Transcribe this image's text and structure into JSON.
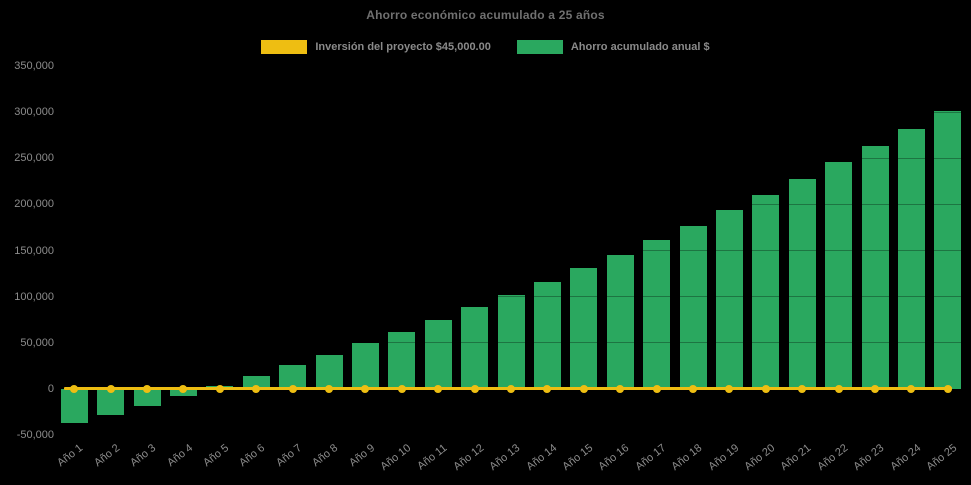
{
  "title": "Ahorro económico acumulado a 25 años",
  "colors": {
    "background": "#000000",
    "bar_green": "#2aa85f",
    "line_gold": "#eebe12",
    "title_text": "#707070",
    "axis_text": "#8c8c8c",
    "legend_text": "#8a8a8a"
  },
  "legend": {
    "items": [
      {
        "label": "Inversión del proyecto $45,000.00",
        "color": "#eebe12",
        "series_type": "line"
      },
      {
        "label": "Ahorro acumulado anual $",
        "color": "#2aa85f",
        "series_type": "bar"
      }
    ]
  },
  "chart_data": {
    "type": "bar",
    "title": "Ahorro económico acumulado a 25 años",
    "categories": [
      "Año 1",
      "Año 2",
      "Año 3",
      "Año 4",
      "Año 5",
      "Año 6",
      "Año 7",
      "Año 8",
      "Año 9",
      "Año 10",
      "Año 11",
      "Año 12",
      "Año 13",
      "Año 14",
      "Año 15",
      "Año 16",
      "Año 17",
      "Año 18",
      "Año 19",
      "Año 20",
      "Año 21",
      "Año 22",
      "Año 23",
      "Año 24",
      "Año 25"
    ],
    "series": [
      {
        "name": "Ahorro acumulado anual $",
        "type": "bar",
        "color": "#2aa85f",
        "values": [
          -37000,
          -28000,
          -18500,
          -8000,
          3500,
          14000,
          25500,
          37000,
          49500,
          62000,
          75000,
          88500,
          102000,
          116000,
          130500,
          145500,
          161000,
          177000,
          193500,
          210000,
          227500,
          245500,
          263500,
          282000,
          301000
        ]
      },
      {
        "name": "Inversión del proyecto $45,000.00",
        "type": "line",
        "color": "#eebe12",
        "marker": "circle",
        "values": [
          0,
          0,
          0,
          0,
          0,
          0,
          0,
          0,
          0,
          0,
          0,
          0,
          0,
          0,
          0,
          0,
          0,
          0,
          0,
          0,
          0,
          0,
          0,
          0,
          0
        ],
        "note": "flat line drawn along the zero baseline with a marker at every category"
      }
    ],
    "xlabel": "",
    "ylabel": "",
    "ylim": [
      -50000,
      350000
    ],
    "ytick_step": 50000,
    "ytick_labels": [
      "-50,000",
      "0",
      "50,000",
      "100,000",
      "150,000",
      "200,000",
      "250,000",
      "300,000",
      "350,000"
    ],
    "grid": "horizontal gridlines, near-invisible on black background (show faintly across bars)",
    "legend_position": "top-center",
    "x_tick_rotation_deg": -38
  }
}
